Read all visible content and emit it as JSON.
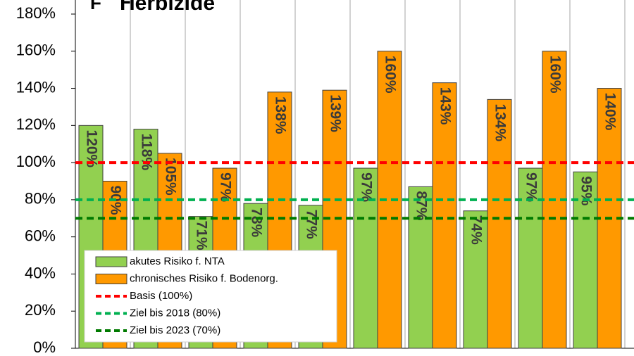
{
  "chart_data": {
    "type": "bar",
    "label": "F",
    "title": "Herbizide",
    "categories": [
      null,
      null,
      null,
      null,
      null,
      null,
      null,
      null,
      null,
      null
    ],
    "series": [
      {
        "name": "akutes Risiko f. NTA",
        "color": "#92d050",
        "values": [
          120,
          118,
          71,
          78,
          77,
          97,
          87,
          74,
          97,
          95
        ],
        "value_labels": [
          "120%",
          "118%",
          "71%",
          "78%",
          "77%",
          "97%",
          "87%",
          "74%",
          "97%",
          "95%"
        ]
      },
      {
        "name": "chronisches Risiko f. Bodenorg.",
        "color": "#ff9900",
        "values": [
          90,
          105,
          97,
          138,
          139,
          160,
          143,
          134,
          160,
          140
        ],
        "value_labels": [
          "90%",
          "105%",
          "97%",
          "138%",
          "139%",
          "160%",
          "143%",
          "134%",
          "160%",
          "140%"
        ]
      }
    ],
    "reference_lines": [
      {
        "name": "Basis (100%)",
        "value": 100,
        "color": "#ff0000"
      },
      {
        "name": "Ziel bis 2018 (80%)",
        "value": 80,
        "color": "#00b050"
      },
      {
        "name": "Ziel bis 2023 (70%)",
        "value": 70,
        "color": "#007a00"
      }
    ],
    "ylim": [
      0,
      180
    ],
    "yticks": [
      {
        "value": 0,
        "label": "0%"
      },
      {
        "value": 20,
        "label": "20%"
      },
      {
        "value": 40,
        "label": "40%"
      },
      {
        "value": 60,
        "label": "60%"
      },
      {
        "value": 80,
        "label": "80%"
      },
      {
        "value": 100,
        "label": "100%"
      },
      {
        "value": 120,
        "label": "120%"
      },
      {
        "value": 140,
        "label": "140%"
      },
      {
        "value": 160,
        "label": "160%"
      },
      {
        "value": 180,
        "label": "180%"
      }
    ],
    "legend": "bottom-left"
  }
}
